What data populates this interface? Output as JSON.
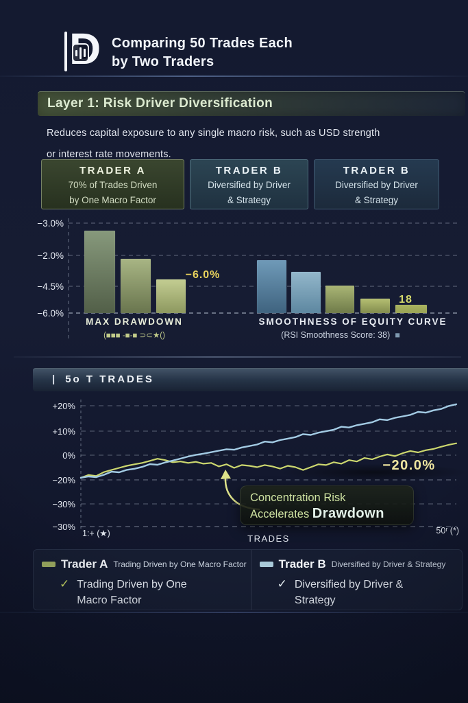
{
  "header": {
    "logo_letter": "D",
    "title_line1": "Comparing 50 Trades Each",
    "title_line2": "by Two Traders"
  },
  "layer1": {
    "heading": "Layer 1: Risk Driver Diversification",
    "description_line1": "Reduces capital exposure to any single macro risk, such as USD strength",
    "description_line2": "or interest rate movements."
  },
  "trader_cards": [
    {
      "title": "TRADER A",
      "line1": "70% of Trades Driven",
      "line2": "by One Macro Factor"
    },
    {
      "title": "TRADER B",
      "line1": "Diversified by Driver",
      "line2": "& Strategy"
    },
    {
      "title": "TRADER B",
      "line1": "Diversified by Driver",
      "line2": "& Strategy"
    }
  ],
  "trades_section": {
    "heading_prefix": "|",
    "heading": "5o T TRADES"
  },
  "callout": {
    "line1": "Concentration Risk",
    "line2_normal": "Accelerates ",
    "line2_bold": "Drawdown"
  },
  "legend": {
    "check_glyph": "✓",
    "trader_a": {
      "name": "Trader A",
      "tagline": "Trading Driven by One Macro Factor",
      "check_text": "Trading Driven by One Macro Factor",
      "swatch_color": "#9fae62",
      "check_color": "#c5d463"
    },
    "trader_b": {
      "name": "Trader B",
      "tagline": "Diversified by Driver & Strategy",
      "check_text": "Diversified by Driver & Strategy",
      "swatch_color": "#a9cad9",
      "check_color": "#e8f0f4"
    }
  },
  "colors": {
    "background_navy": "#141a30",
    "heading_green": "#dcead0",
    "accent_yellow": "#e9d35c",
    "pale_yellow_label": "#efe6a0",
    "line_trader_a": "#ccd76e",
    "line_trader_b": "#a3cbe4",
    "tick_text": "#e8ecf4",
    "rsi_square": "#7f9ab0"
  },
  "chart_data": [
    {
      "type": "bar",
      "title": "MAX DRAWDOWN",
      "subtitle": "(■■■ -■-■ ⊃⊂★()",
      "y_tick_labels": [
        "−3.0%",
        "−2.0%",
        "−4.5%",
        "−6.0%"
      ],
      "value_note": "bar heights in relative display units; axis tick labels as printed",
      "bars": [
        {
          "value": 120,
          "colors": [
            "#87997c",
            "#525f48"
          ]
        },
        {
          "value": 79,
          "colors": [
            "#a8b584",
            "#69754e"
          ]
        },
        {
          "value": 49,
          "colors": [
            "#c3cd92",
            "#8d985f"
          ]
        }
      ],
      "annotation": {
        "text": "−6.0%",
        "color": "#e9d35c"
      }
    },
    {
      "type": "bar",
      "title": "SMOOTHNESS OF EQUITY CURVE",
      "subtitle": "(RSI Smoothness Score: 38)",
      "subtitle_icon": "■",
      "value_note": "bar heights in relative display units",
      "bars": [
        {
          "value": 77,
          "colors": [
            "#6f9ab8",
            "#3f637f"
          ]
        },
        {
          "value": 60,
          "colors": [
            "#93b7cb",
            "#5d87a0"
          ]
        },
        {
          "value": 40,
          "colors": [
            "#a9b575",
            "#6f7b49"
          ]
        },
        {
          "value": 21,
          "colors": [
            "#b5bf72",
            "#828c4e"
          ]
        },
        {
          "value": 12,
          "colors": [
            "#aab45f",
            "#99a355"
          ]
        }
      ],
      "annotation": {
        "text": "18",
        "color": "#d4d96c"
      }
    },
    {
      "type": "line",
      "title": "5o T TRADES",
      "xlabel": "TRADES",
      "x_tick_labels": [
        "1:+ (★)",
        "50ʳ (*)"
      ],
      "y_tick_labels": [
        "+20%",
        "+10%",
        "0%",
        "−20%",
        "−30%",
        "−30%"
      ],
      "x_range": [
        1,
        50
      ],
      "grid": "dashed",
      "legend_position": "bottom",
      "series": [
        {
          "name": "Trader A",
          "color": "#ccd76e",
          "values": [
            -18.3,
            -16.0,
            -16.9,
            -13.7,
            -12.0,
            -10.3,
            -8.6,
            -7.4,
            -6.3,
            -4.6,
            -2.9,
            -4.0,
            -5.7,
            -5.1,
            -6.3,
            -5.4,
            -6.9,
            -6.3,
            -9.1,
            -7.4,
            -10.3,
            -8.0,
            -8.6,
            -9.7,
            -8.0,
            -9.1,
            -10.9,
            -8.6,
            -9.7,
            -12.0,
            -9.7,
            -7.4,
            -8.0,
            -5.7,
            -6.9,
            -4.0,
            -5.1,
            -2.3,
            -3.4,
            -1.1,
            0.3,
            -0.8,
            0.8,
            1.7,
            1.1,
            2.0,
            2.5,
            3.4,
            4.2,
            4.8
          ]
        },
        {
          "name": "Trader B",
          "color": "#a3cbe4",
          "values": [
            -18.3,
            -17.2,
            -17.8,
            -15.9,
            -13.4,
            -13.9,
            -11.9,
            -11.0,
            -9.5,
            -7.3,
            -7.8,
            -5.9,
            -4.4,
            -2.8,
            -1.1,
            0.1,
            0.6,
            1.2,
            1.8,
            2.4,
            2.2,
            3.1,
            3.7,
            4.3,
            5.5,
            5.2,
            6.1,
            6.7,
            7.3,
            8.5,
            8.2,
            9.1,
            9.7,
            10.3,
            11.5,
            11.2,
            12.1,
            12.7,
            13.3,
            14.5,
            14.2,
            15.1,
            15.7,
            16.3,
            17.5,
            17.2,
            18.1,
            18.7,
            19.9,
            20.6
          ]
        }
      ],
      "annotations": [
        {
          "text": "−20.0%",
          "color": "#efe6a0"
        },
        {
          "type": "callout",
          "text": "Concentration Risk Accelerates Drawdown"
        }
      ]
    }
  ]
}
